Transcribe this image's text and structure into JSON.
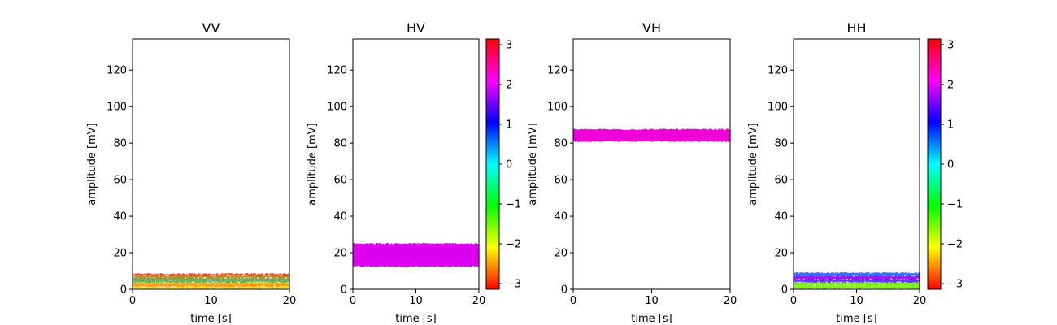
{
  "chart_data": [
    {
      "type": "scatter",
      "title": "VV",
      "xlabel": "time [s]",
      "ylabel": "amplitude [mV]",
      "xlim": [
        0,
        20
      ],
      "ylim": [
        0,
        137
      ],
      "xticks": [
        "0",
        "10",
        "20"
      ],
      "yticks": [
        "0",
        "20",
        "40",
        "60",
        "80",
        "100",
        "120"
      ],
      "band": {
        "y_min": 0.5,
        "y_max": 8.5,
        "colors": [
          "#ffd800",
          "#ff8a00",
          "#e8b200",
          "#4caf50",
          "#7a9a2a",
          "#9a8c1f",
          "#ff3a00"
        ]
      },
      "colorbar": false
    },
    {
      "type": "scatter",
      "title": "HV",
      "xlabel": "time [s]",
      "ylabel": "amplitude [mV]",
      "xlim": [
        0,
        20
      ],
      "ylim": [
        0,
        137
      ],
      "xticks": [
        "0",
        "10",
        "20"
      ],
      "yticks": [
        "0",
        "20",
        "40",
        "60",
        "80",
        "100",
        "120"
      ],
      "band": {
        "y_min": 12.5,
        "y_max": 25,
        "colors": [
          "#dd00f0"
        ]
      },
      "colorbar": true
    },
    {
      "type": "scatter",
      "title": "VH",
      "xlabel": "time [s]",
      "ylabel": "amplitude [mV]",
      "xlim": [
        0,
        20
      ],
      "ylim": [
        0,
        137
      ],
      "xticks": [
        "0",
        "10",
        "20"
      ],
      "yticks": [
        "0",
        "20",
        "40",
        "60",
        "80",
        "100",
        "120"
      ],
      "band": {
        "y_min": 81,
        "y_max": 87.5,
        "colors": [
          "#f000d8"
        ]
      },
      "colorbar": false
    },
    {
      "type": "scatter",
      "title": "HH",
      "xlabel": "time [s]",
      "ylabel": "amplitude [mV]",
      "xlim": [
        0,
        20
      ],
      "ylim": [
        0,
        137
      ],
      "xticks": [
        "0",
        "10",
        "20"
      ],
      "yticks": [
        "0",
        "20",
        "40",
        "60",
        "80",
        "100",
        "120"
      ],
      "band": {
        "y_min": 0.5,
        "y_max": 9,
        "colors": [
          "#7cf000",
          "#6ee800",
          "#5a20ff",
          "#9000ff",
          "#2060ff"
        ]
      },
      "colorbar": true
    }
  ],
  "colorbar": {
    "range": [
      -3.14159,
      3.14159
    ],
    "ticks": [
      3,
      2,
      1,
      0,
      -1,
      -2,
      -3
    ],
    "tick_labels": [
      "3",
      "2",
      "1",
      "0",
      "−1",
      "−2",
      "−3"
    ],
    "colormap": "hsv"
  }
}
